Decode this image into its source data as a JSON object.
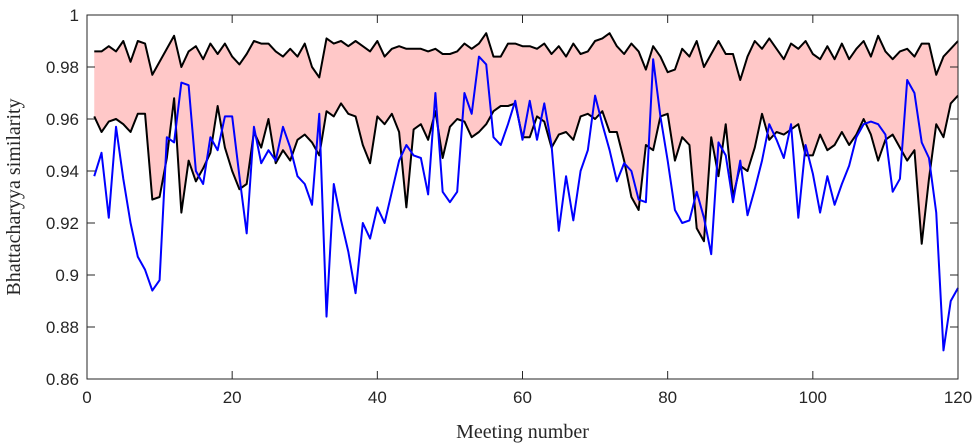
{
  "chart_data": {
    "type": "line",
    "title": "",
    "xlabel": "Meeting number",
    "ylabel": "Bhattacharyya similarity",
    "xlim": [
      0,
      120
    ],
    "ylim": [
      0.86,
      1
    ],
    "xticks": [
      0,
      20,
      40,
      60,
      80,
      100,
      120
    ],
    "yticks": [
      0.86,
      0.88,
      0.9,
      0.92,
      0.94,
      0.96,
      0.98,
      1
    ],
    "xtick_labels": [
      "0",
      "20",
      "40",
      "60",
      "80",
      "100",
      "120"
    ],
    "ytick_labels": [
      "0.86",
      "0.88",
      "0.9",
      "0.92",
      "0.94",
      "0.96",
      "0.98",
      "1"
    ],
    "grid": false,
    "legend": "none",
    "colors": {
      "band_fill": "#ffc8c8",
      "band_edge": "#000000",
      "series": "#0000ff",
      "axis": "#262626"
    },
    "x": [
      1,
      2,
      3,
      4,
      5,
      6,
      7,
      8,
      9,
      10,
      11,
      12,
      13,
      14,
      15,
      16,
      17,
      18,
      19,
      20,
      21,
      22,
      23,
      24,
      25,
      26,
      27,
      28,
      29,
      30,
      31,
      32,
      33,
      34,
      35,
      36,
      37,
      38,
      39,
      40,
      41,
      42,
      43,
      44,
      45,
      46,
      47,
      48,
      49,
      50,
      51,
      52,
      53,
      54,
      55,
      56,
      57,
      58,
      59,
      60,
      61,
      62,
      63,
      64,
      65,
      66,
      67,
      68,
      69,
      70,
      71,
      72,
      73,
      74,
      75,
      76,
      77,
      78,
      79,
      80,
      81,
      82,
      83,
      84,
      85,
      86,
      87,
      88,
      89,
      90,
      91,
      92,
      93,
      94,
      95,
      96,
      97,
      98,
      99,
      100,
      101,
      102,
      103,
      104,
      105,
      106,
      107,
      108,
      109,
      110,
      111,
      112,
      113,
      114,
      115,
      116,
      117,
      118,
      119,
      120
    ],
    "band": {
      "upper": [
        0.986,
        0.986,
        0.988,
        0.986,
        0.99,
        0.982,
        0.99,
        0.989,
        0.977,
        0.982,
        0.987,
        0.992,
        0.98,
        0.986,
        0.988,
        0.983,
        0.989,
        0.985,
        0.989,
        0.984,
        0.981,
        0.985,
        0.99,
        0.989,
        0.989,
        0.986,
        0.984,
        0.987,
        0.984,
        0.989,
        0.98,
        0.976,
        0.991,
        0.989,
        0.99,
        0.988,
        0.99,
        0.988,
        0.986,
        0.99,
        0.984,
        0.987,
        0.988,
        0.987,
        0.987,
        0.987,
        0.986,
        0.987,
        0.985,
        0.985,
        0.986,
        0.989,
        0.987,
        0.989,
        0.993,
        0.984,
        0.984,
        0.989,
        0.989,
        0.988,
        0.988,
        0.987,
        0.989,
        0.985,
        0.988,
        0.984,
        0.989,
        0.985,
        0.986,
        0.99,
        0.991,
        0.993,
        0.988,
        0.985,
        0.989,
        0.986,
        0.979,
        0.988,
        0.984,
        0.978,
        0.979,
        0.987,
        0.984,
        0.99,
        0.98,
        0.985,
        0.99,
        0.985,
        0.985,
        0.975,
        0.984,
        0.99,
        0.987,
        0.991,
        0.987,
        0.983,
        0.989,
        0.987,
        0.99,
        0.985,
        0.983,
        0.988,
        0.983,
        0.989,
        0.983,
        0.987,
        0.99,
        0.984,
        0.992,
        0.986,
        0.983,
        0.986,
        0.987,
        0.984,
        0.989,
        0.989,
        0.977,
        0.984,
        0.987,
        0.99
      ],
      "lower": [
        0.961,
        0.955,
        0.959,
        0.96,
        0.958,
        0.955,
        0.962,
        0.962,
        0.929,
        0.93,
        0.945,
        0.968,
        0.924,
        0.944,
        0.936,
        0.941,
        0.947,
        0.965,
        0.949,
        0.94,
        0.933,
        0.935,
        0.955,
        0.949,
        0.96,
        0.943,
        0.948,
        0.944,
        0.952,
        0.954,
        0.951,
        0.946,
        0.963,
        0.961,
        0.966,
        0.962,
        0.961,
        0.95,
        0.943,
        0.961,
        0.958,
        0.962,
        0.955,
        0.926,
        0.956,
        0.958,
        0.952,
        0.963,
        0.945,
        0.957,
        0.96,
        0.959,
        0.953,
        0.955,
        0.958,
        0.963,
        0.965,
        0.965,
        0.966,
        0.953,
        0.953,
        0.961,
        0.959,
        0.949,
        0.954,
        0.955,
        0.952,
        0.961,
        0.962,
        0.96,
        0.963,
        0.955,
        0.955,
        0.944,
        0.93,
        0.925,
        0.95,
        0.948,
        0.961,
        0.962,
        0.944,
        0.953,
        0.95,
        0.918,
        0.913,
        0.953,
        0.938,
        0.958,
        0.93,
        0.942,
        0.94,
        0.949,
        0.962,
        0.952,
        0.955,
        0.954,
        0.956,
        0.958,
        0.946,
        0.946,
        0.954,
        0.948,
        0.95,
        0.955,
        0.95,
        0.954,
        0.96,
        0.954,
        0.944,
        0.952,
        0.954,
        0.949,
        0.944,
        0.948,
        0.912,
        0.937,
        0.958,
        0.953,
        0.966,
        0.969
      ]
    },
    "series": [
      {
        "values": [
          0.938,
          0.947,
          0.922,
          0.957,
          0.937,
          0.92,
          0.907,
          0.902,
          0.894,
          0.898,
          0.953,
          0.951,
          0.974,
          0.973,
          0.94,
          0.935,
          0.953,
          0.948,
          0.961,
          0.961,
          0.938,
          0.916,
          0.957,
          0.943,
          0.948,
          0.944,
          0.957,
          0.949,
          0.938,
          0.935,
          0.927,
          0.962,
          0.884,
          0.935,
          0.921,
          0.909,
          0.893,
          0.92,
          0.914,
          0.926,
          0.92,
          0.932,
          0.944,
          0.95,
          0.946,
          0.945,
          0.931,
          0.97,
          0.932,
          0.928,
          0.932,
          0.97,
          0.962,
          0.984,
          0.981,
          0.953,
          0.95,
          0.958,
          0.967,
          0.952,
          0.967,
          0.952,
          0.966,
          0.95,
          0.917,
          0.938,
          0.921,
          0.94,
          0.948,
          0.969,
          0.958,
          0.948,
          0.936,
          0.943,
          0.94,
          0.929,
          0.928,
          0.983,
          0.961,
          0.944,
          0.925,
          0.92,
          0.921,
          0.932,
          0.922,
          0.908,
          0.951,
          0.946,
          0.928,
          0.944,
          0.923,
          0.933,
          0.944,
          0.958,
          0.952,
          0.945,
          0.958,
          0.922,
          0.95,
          0.939,
          0.924,
          0.938,
          0.927,
          0.935,
          0.942,
          0.953,
          0.958,
          0.959,
          0.958,
          0.954,
          0.932,
          0.937,
          0.975,
          0.97,
          0.951,
          0.945,
          0.924,
          0.871,
          0.89,
          0.895
        ]
      }
    ]
  }
}
